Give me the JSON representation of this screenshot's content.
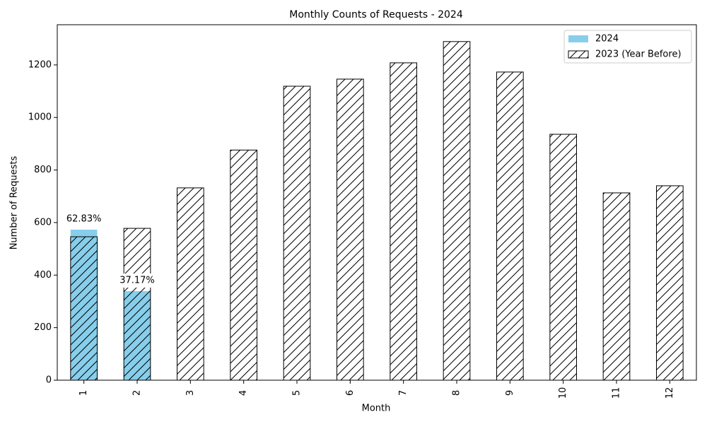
{
  "chart_data": {
    "type": "bar",
    "title": "Monthly Counts of Requests - 2024",
    "x_label": "Month",
    "y_label": "Number of Requests",
    "categories": [
      "1",
      "2",
      "3",
      "4",
      "5",
      "6",
      "7",
      "8",
      "9",
      "10",
      "11",
      "12"
    ],
    "series": [
      {
        "name": "2024",
        "color": "#87ceeb",
        "hatch": false,
        "values": [
          573,
          339,
          null,
          null,
          null,
          null,
          null,
          null,
          null,
          null,
          null,
          null
        ]
      },
      {
        "name": "2023 (Year Before)",
        "color": "#000000",
        "hatch": true,
        "values": [
          546,
          578,
          732,
          876,
          1119,
          1146,
          1208,
          1289,
          1173,
          936,
          713,
          740
        ]
      }
    ],
    "annotations": [
      "62.83%",
      "37.17%"
    ],
    "ylim": [
      0,
      1353
    ],
    "yticks": [
      0,
      200,
      400,
      600,
      800,
      1000,
      1200
    ],
    "grid": false,
    "legend": "upper right"
  }
}
